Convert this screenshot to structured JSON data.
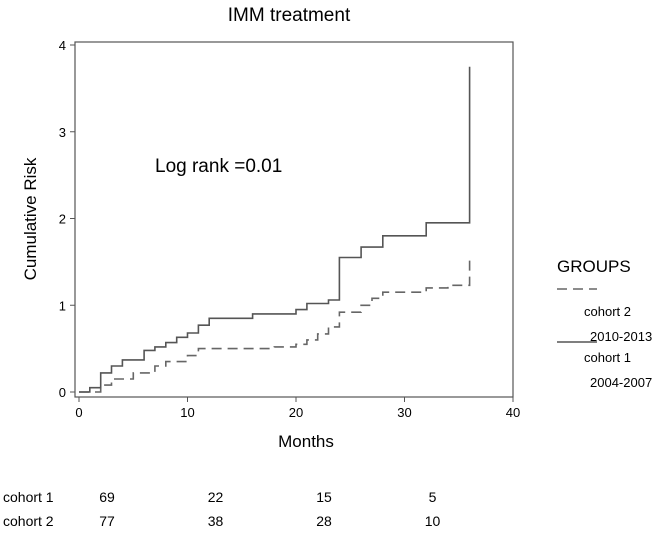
{
  "chart_data": {
    "type": "line",
    "title": "IMM treatment",
    "xlabel": "Months",
    "ylabel": "Cumulative Risk",
    "xlim": [
      0,
      40
    ],
    "ylim": [
      0,
      4
    ],
    "xticks": [
      "0",
      "10",
      "20",
      "30",
      "40"
    ],
    "yticks": [
      "0",
      "1",
      "2",
      "3",
      "4"
    ],
    "annotation": "Log rank =0.01",
    "legend_title": "GROUPS",
    "legend_position": "right",
    "series": [
      {
        "name": "cohort 2",
        "subtitle": "2010-2013",
        "style": "dashed",
        "color": "#666666",
        "points": [
          [
            0,
            0
          ],
          [
            2,
            0
          ],
          [
            2,
            0.08
          ],
          [
            3,
            0.08
          ],
          [
            3,
            0.15
          ],
          [
            5,
            0.15
          ],
          [
            5,
            0.22
          ],
          [
            7,
            0.22
          ],
          [
            7,
            0.3
          ],
          [
            8,
            0.3
          ],
          [
            8,
            0.35
          ],
          [
            10,
            0.35
          ],
          [
            10,
            0.42
          ],
          [
            11,
            0.42
          ],
          [
            11,
            0.5
          ],
          [
            18,
            0.5
          ],
          [
            18,
            0.52
          ],
          [
            20,
            0.52
          ],
          [
            20,
            0.55
          ],
          [
            21,
            0.55
          ],
          [
            21,
            0.6
          ],
          [
            22,
            0.6
          ],
          [
            22,
            0.67
          ],
          [
            23,
            0.67
          ],
          [
            23,
            0.75
          ],
          [
            24,
            0.75
          ],
          [
            24,
            0.92
          ],
          [
            26,
            0.92
          ],
          [
            26,
            1.0
          ],
          [
            27,
            1.0
          ],
          [
            27,
            1.08
          ],
          [
            28,
            1.08
          ],
          [
            28,
            1.15
          ],
          [
            32,
            1.15
          ],
          [
            32,
            1.2
          ],
          [
            34,
            1.2
          ],
          [
            34,
            1.23
          ],
          [
            36,
            1.23
          ],
          [
            36,
            1.35
          ],
          [
            36,
            1.55
          ]
        ]
      },
      {
        "name": "cohort 1",
        "subtitle": "2004-2007",
        "style": "solid",
        "color": "#555555",
        "points": [
          [
            0,
            0
          ],
          [
            1,
            0
          ],
          [
            1,
            0.05
          ],
          [
            2,
            0.05
          ],
          [
            2,
            0.22
          ],
          [
            3,
            0.22
          ],
          [
            3,
            0.3
          ],
          [
            4,
            0.3
          ],
          [
            4,
            0.37
          ],
          [
            6,
            0.37
          ],
          [
            6,
            0.48
          ],
          [
            7,
            0.48
          ],
          [
            7,
            0.52
          ],
          [
            8,
            0.52
          ],
          [
            8,
            0.57
          ],
          [
            9,
            0.57
          ],
          [
            9,
            0.63
          ],
          [
            10,
            0.63
          ],
          [
            10,
            0.68
          ],
          [
            11,
            0.68
          ],
          [
            11,
            0.77
          ],
          [
            12,
            0.77
          ],
          [
            12,
            0.85
          ],
          [
            16,
            0.85
          ],
          [
            16,
            0.9
          ],
          [
            20,
            0.9
          ],
          [
            20,
            0.95
          ],
          [
            21,
            0.95
          ],
          [
            21,
            1.02
          ],
          [
            23,
            1.02
          ],
          [
            23,
            1.06
          ],
          [
            24,
            1.06
          ],
          [
            24,
            1.55
          ],
          [
            26,
            1.55
          ],
          [
            26,
            1.67
          ],
          [
            28,
            1.67
          ],
          [
            28,
            1.8
          ],
          [
            32,
            1.8
          ],
          [
            32,
            1.95
          ],
          [
            36,
            1.95
          ],
          [
            36,
            3.75
          ]
        ]
      }
    ]
  },
  "risk_table": {
    "rows": [
      {
        "label": "cohort 1",
        "values": [
          "69",
          "22",
          "15",
          "5"
        ]
      },
      {
        "label": "cohort 2",
        "values": [
          "77",
          "38",
          "28",
          "10"
        ]
      }
    ]
  }
}
